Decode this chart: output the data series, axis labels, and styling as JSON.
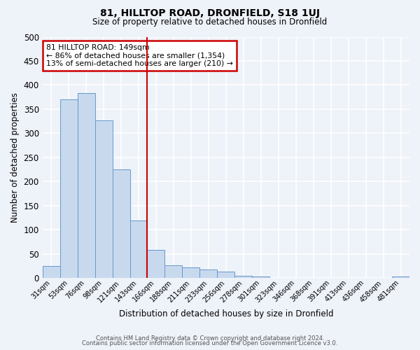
{
  "title": "81, HILLTOP ROAD, DRONFIELD, S18 1UJ",
  "subtitle": "Size of property relative to detached houses in Dronfield",
  "xlabel": "Distribution of detached houses by size in Dronfield",
  "ylabel": "Number of detached properties",
  "bar_labels": [
    "31sqm",
    "53sqm",
    "76sqm",
    "98sqm",
    "121sqm",
    "143sqm",
    "166sqm",
    "188sqm",
    "211sqm",
    "233sqm",
    "256sqm",
    "278sqm",
    "301sqm",
    "323sqm",
    "346sqm",
    "368sqm",
    "391sqm",
    "413sqm",
    "436sqm",
    "458sqm",
    "481sqm"
  ],
  "bar_values": [
    25,
    370,
    383,
    327,
    225,
    120,
    59,
    26,
    22,
    18,
    14,
    5,
    4,
    1,
    0,
    0,
    0,
    0,
    0,
    0,
    3
  ],
  "bar_color": "#c8d9ee",
  "bar_edge_color": "#6699cc",
  "vline_color": "#cc0000",
  "annotation_title": "81 HILLTOP ROAD: 149sqm",
  "annotation_line1": "← 86% of detached houses are smaller (1,354)",
  "annotation_line2": "13% of semi-detached houses are larger (210) →",
  "annotation_box_color": "#cc0000",
  "ylim": [
    0,
    500
  ],
  "yticks": [
    0,
    50,
    100,
    150,
    200,
    250,
    300,
    350,
    400,
    450,
    500
  ],
  "footer1": "Contains HM Land Registry data © Crown copyright and database right 2024.",
  "footer2": "Contains public sector information licensed under the Open Government Licence v3.0.",
  "bg_color": "#eef2f9",
  "grid_color": "#ffffff"
}
